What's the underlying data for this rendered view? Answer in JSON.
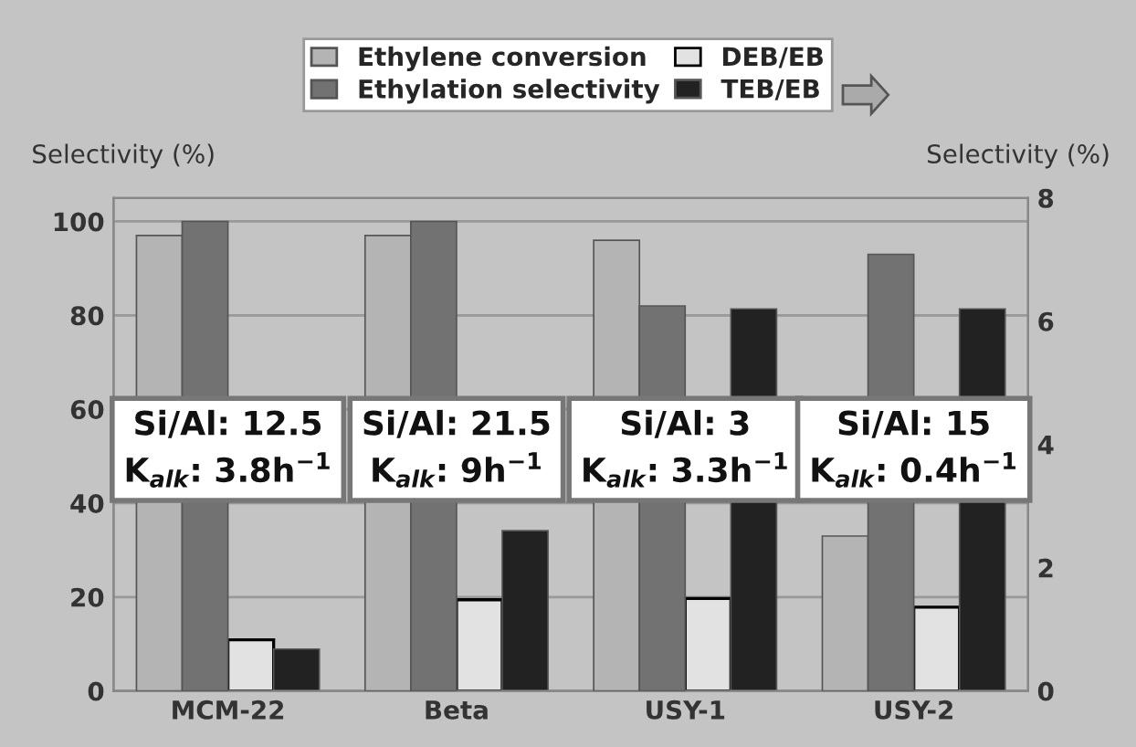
{
  "chart_data": {
    "type": "bar",
    "categories": [
      "MCM-22",
      "Beta",
      "USY-1",
      "USY-2"
    ],
    "series": [
      {
        "name": "Ethylene conversion",
        "color": "#b4b4b4",
        "values": [
          97,
          97,
          96,
          33
        ]
      },
      {
        "name": "Ethylation selectivity",
        "color": "#727272",
        "values": [
          100,
          100,
          82,
          93
        ]
      },
      {
        "name": "DEB/EB",
        "color": "#e2e2e2",
        "values": [
          0.83,
          1.48,
          1.5,
          1.36
        ],
        "axis": "y2"
      },
      {
        "name": "TEB/EB",
        "color": "#222222",
        "values": [
          0.68,
          2.6,
          6.2,
          6.2
        ],
        "axis": "y2"
      }
    ],
    "ylabel": "Selectivity (%)",
    "y2label": "Selectivity (%)",
    "ylim": [
      0,
      105
    ],
    "yticks": [
      0,
      20,
      40,
      60,
      80,
      100
    ],
    "y2lim": [
      0,
      8
    ],
    "y2ticks": [
      0,
      2,
      4,
      6,
      8
    ],
    "grid": "y",
    "legend": "top",
    "annotations": [
      "Si/Al: 12.5\nK$_{alk}$: 3.8h$^{−1}$",
      "Si/Al: 21.5\nK$_{alk}$: 9h$^{−1}$",
      "Si/Al: 3\nK$_{alk}$: 3.3h$^{−1}$",
      "Si/Al: 15\nK$_{alk}$: 0.4h$^{−1}$"
    ]
  }
}
